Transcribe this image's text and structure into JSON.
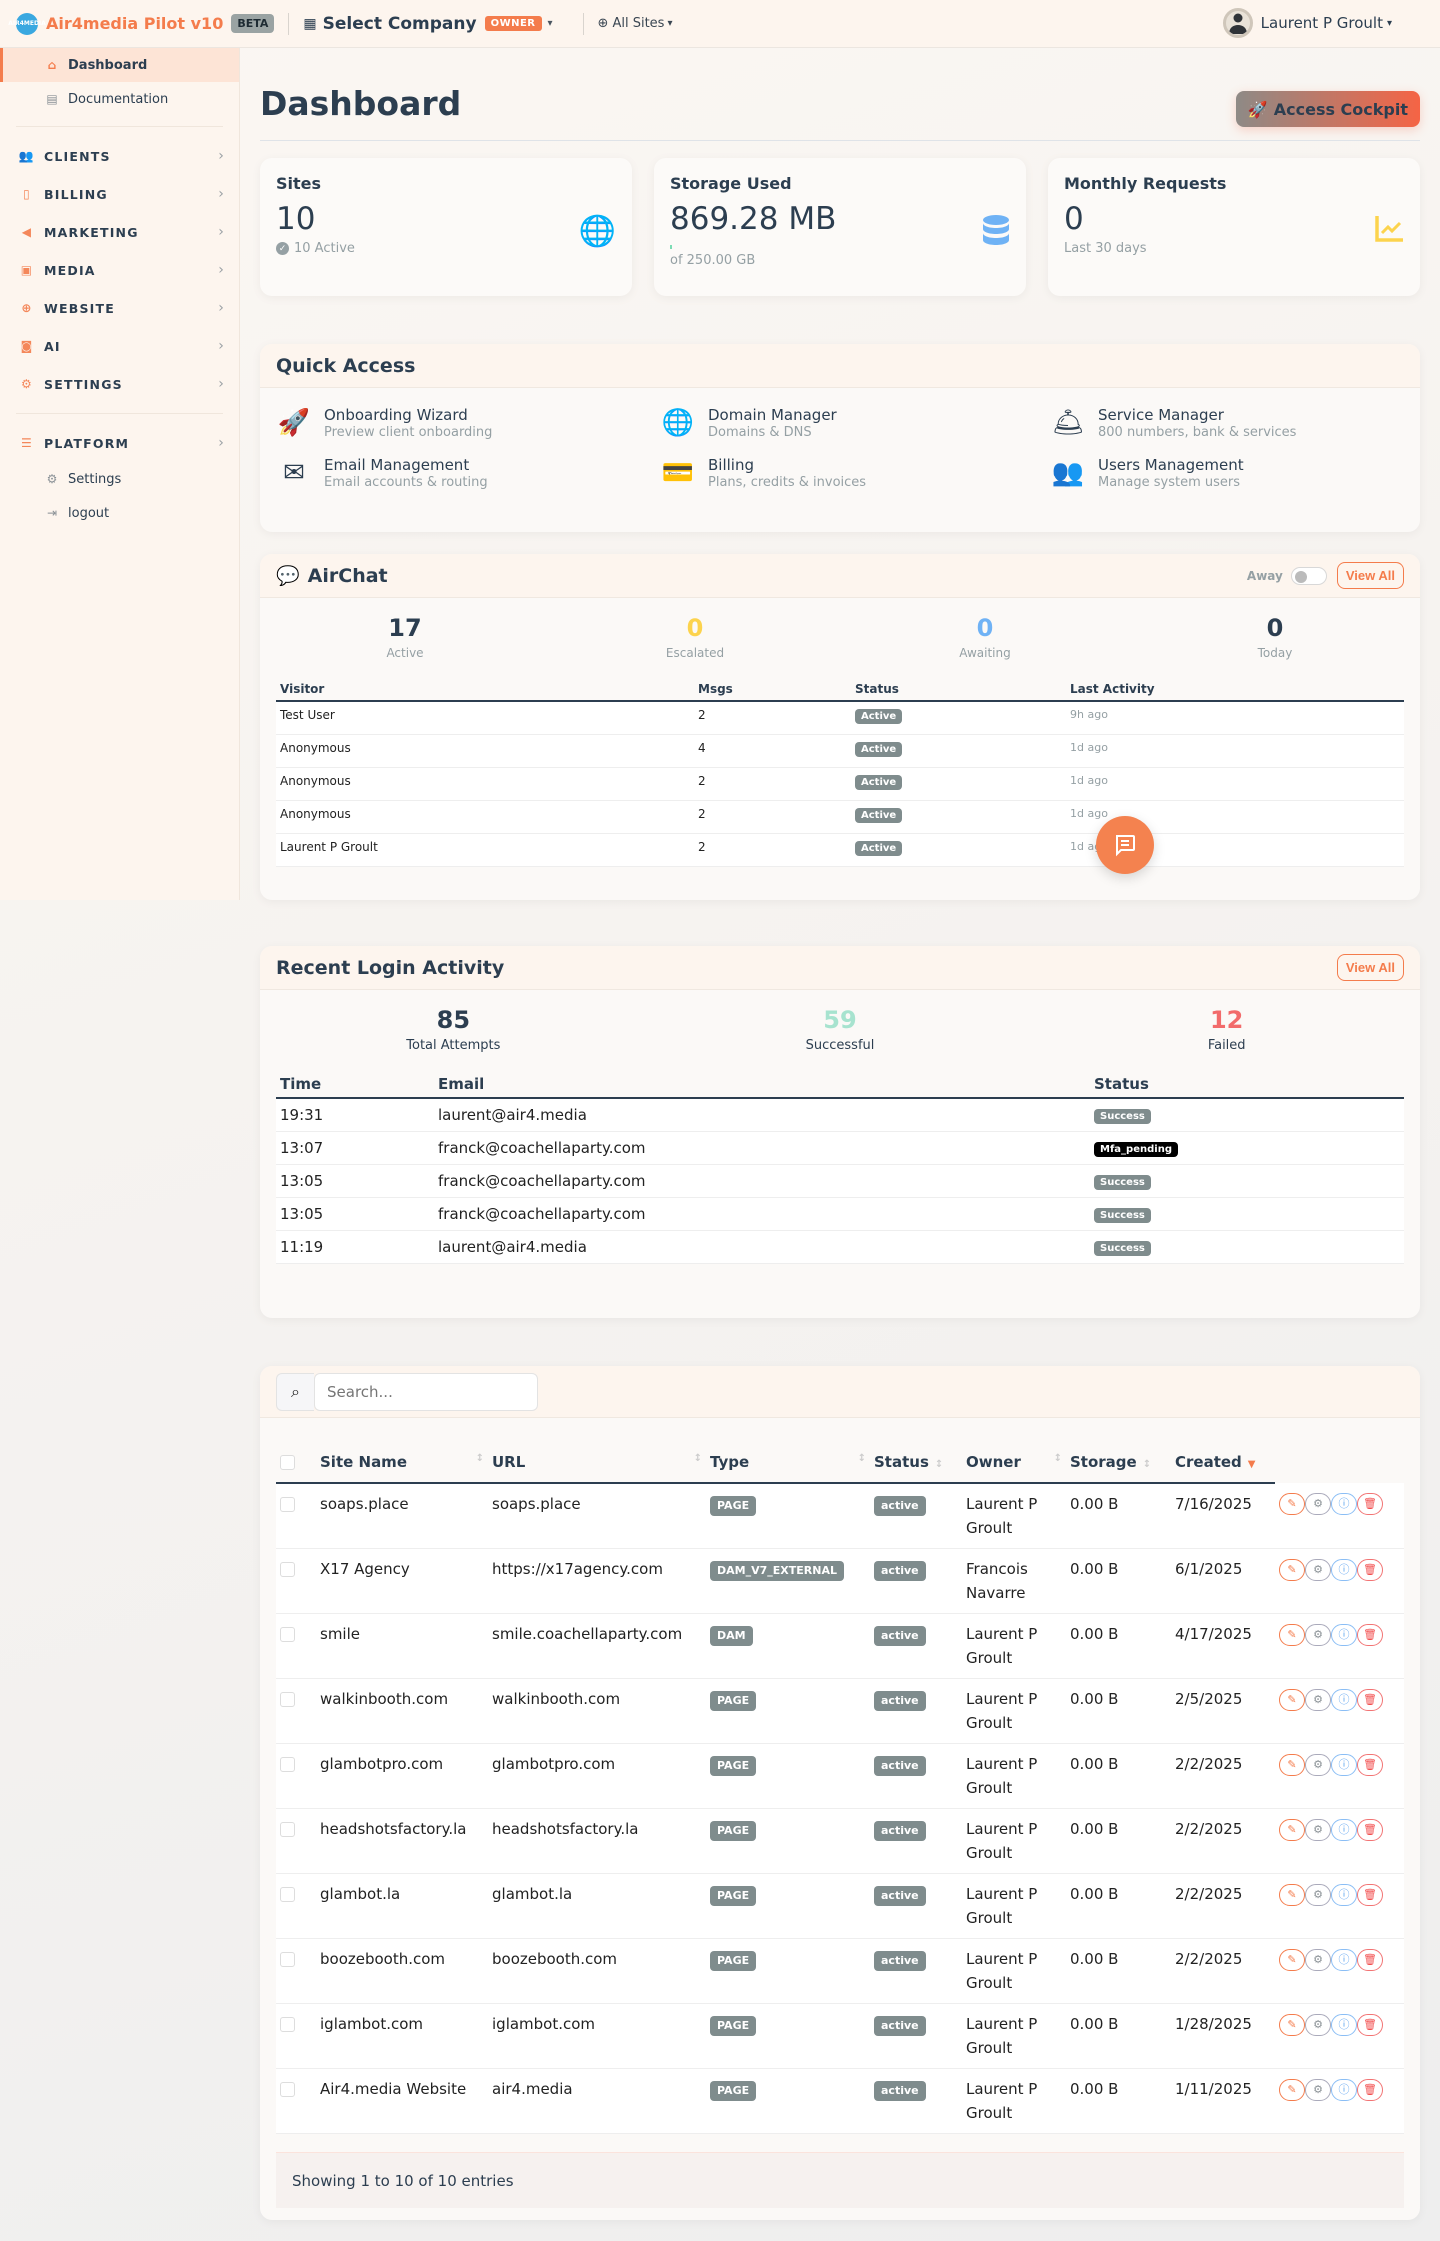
{
  "topbar": {
    "logo_text": "AIR4MEDIA",
    "brand": "Air4media Pilot v10",
    "beta_badge": "BETA",
    "company_selector": "Select Company",
    "owner_badge": "OWNER",
    "sites_selector": "All Sites",
    "user_name": "Laurent P Groult"
  },
  "sidebar": {
    "top_items": [
      {
        "label": "Dashboard",
        "icon": "home-icon",
        "active": true
      },
      {
        "label": "Documentation",
        "icon": "book-icon",
        "active": false
      }
    ],
    "sections": [
      {
        "label": "CLIENTS",
        "icon": "users-icon"
      },
      {
        "label": "BILLING",
        "icon": "invoice-icon"
      },
      {
        "label": "MARKETING",
        "icon": "megaphone-icon"
      },
      {
        "label": "MEDIA",
        "icon": "images-icon"
      },
      {
        "label": "WEBSITE",
        "icon": "globe-icon"
      },
      {
        "label": "AI",
        "icon": "robot-icon"
      },
      {
        "label": "SETTINGS",
        "icon": "gear-icon"
      }
    ],
    "platform": {
      "label": "PLATFORM",
      "icon": "server-icon"
    },
    "platform_items": [
      {
        "label": "Settings",
        "icon": "gear-icon"
      },
      {
        "label": "logout",
        "icon": "logout-icon"
      }
    ]
  },
  "page": {
    "title": "Dashboard",
    "cockpit_button": "Access Cockpit"
  },
  "stats": [
    {
      "title": "Sites",
      "value": "10",
      "sub": "10 Active",
      "icon": "globe-icon",
      "color": "#f47c4c"
    },
    {
      "title": "Storage Used",
      "value": "869.28 MB",
      "sub": "of 250.00 GB",
      "icon": "database-icon",
      "color": "#6fb2f5"
    },
    {
      "title": "Monthly Requests",
      "value": "0",
      "sub": "Last 30 days",
      "icon": "chart-line-icon",
      "color": "#fcd34d"
    }
  ],
  "quick_access": {
    "title": "Quick Access",
    "items": [
      {
        "title": "Onboarding Wizard",
        "desc": "Preview client onboarding",
        "icon": "rocket-icon"
      },
      {
        "title": "Domain Manager",
        "desc": "Domains & DNS",
        "icon": "globe-icon"
      },
      {
        "title": "Service Manager",
        "desc": "800 numbers, bank & services",
        "icon": "concierge-bell-icon"
      },
      {
        "title": "Email Management",
        "desc": "Email accounts & routing",
        "icon": "envelope-icon"
      },
      {
        "title": "Billing",
        "desc": "Plans, credits & invoices",
        "icon": "credit-card-icon"
      },
      {
        "title": "Users Management",
        "desc": "Manage system users",
        "icon": "users-cog-icon"
      }
    ]
  },
  "airchat": {
    "title": "AirChat",
    "away_label": "Away",
    "view_all": "View All",
    "counters": [
      {
        "value": "17",
        "label": "Active",
        "color": "#2c3e50"
      },
      {
        "value": "0",
        "label": "Escalated",
        "color": "#fcd34d"
      },
      {
        "value": "0",
        "label": "Awaiting",
        "color": "#6fb2f5"
      },
      {
        "value": "0",
        "label": "Today",
        "color": "#2c3e50"
      }
    ],
    "columns": [
      "Visitor",
      "Msgs",
      "Status",
      "Last Activity"
    ],
    "rows": [
      {
        "visitor": "Test User",
        "msgs": "2",
        "status": "Active",
        "last": "9h ago"
      },
      {
        "visitor": "Anonymous",
        "msgs": "4",
        "status": "Active",
        "last": "1d ago"
      },
      {
        "visitor": "Anonymous",
        "msgs": "2",
        "status": "Active",
        "last": "1d ago"
      },
      {
        "visitor": "Anonymous",
        "msgs": "2",
        "status": "Active",
        "last": "1d ago"
      },
      {
        "visitor": "Laurent P Groult",
        "msgs": "2",
        "status": "Active",
        "last": "1d ago"
      }
    ]
  },
  "login_activity": {
    "title": "Recent Login Activity",
    "view_all": "View All",
    "counters": [
      {
        "value": "85",
        "label": "Total Attempts",
        "color": "#2c3e50"
      },
      {
        "value": "59",
        "label": "Successful",
        "color": "#a7e3cf"
      },
      {
        "value": "12",
        "label": "Failed",
        "color": "#f26b6b"
      }
    ],
    "columns": [
      "Time",
      "Email",
      "Status"
    ],
    "rows": [
      {
        "time": "19:31",
        "email": "laurent@air4.media",
        "status": "Success"
      },
      {
        "time": "13:07",
        "email": "franck@coachellaparty.com",
        "status": "Mfa_pending"
      },
      {
        "time": "13:05",
        "email": "franck@coachellaparty.com",
        "status": "Success"
      },
      {
        "time": "13:05",
        "email": "franck@coachellaparty.com",
        "status": "Success"
      },
      {
        "time": "11:19",
        "email": "laurent@air4.media",
        "status": "Success"
      }
    ]
  },
  "sites_table": {
    "search_placeholder": "Search...",
    "columns": [
      "Site Name",
      "URL",
      "Type",
      "Status",
      "Owner",
      "Storage",
      "Created"
    ],
    "sorted_column": "Created",
    "rows": [
      {
        "name": "soaps.place",
        "url": "soaps.place",
        "type": "PAGE",
        "status": "active",
        "owner": "Laurent P Groult",
        "storage": "0.00 B",
        "created": "7/16/2025"
      },
      {
        "name": "X17 Agency",
        "url": "https://x17agency.com",
        "type": "DAM_V7_EXTERNAL",
        "status": "active",
        "owner": "Francois Navarre",
        "storage": "0.00 B",
        "created": "6/1/2025"
      },
      {
        "name": "smile",
        "url": "smile.coachellaparty.com",
        "type": "DAM",
        "status": "active",
        "owner": "Laurent P Groult",
        "storage": "0.00 B",
        "created": "4/17/2025"
      },
      {
        "name": "walkinbooth.com",
        "url": "walkinbooth.com",
        "type": "PAGE",
        "status": "active",
        "owner": "Laurent P Groult",
        "storage": "0.00 B",
        "created": "2/5/2025"
      },
      {
        "name": "glambotpro.com",
        "url": "glambotpro.com",
        "type": "PAGE",
        "status": "active",
        "owner": "Laurent P Groult",
        "storage": "0.00 B",
        "created": "2/2/2025"
      },
      {
        "name": "headshotsfactory.la",
        "url": "headshotsfactory.la",
        "type": "PAGE",
        "status": "active",
        "owner": "Laurent P Groult",
        "storage": "0.00 B",
        "created": "2/2/2025"
      },
      {
        "name": "glambot.la",
        "url": "glambot.la",
        "type": "PAGE",
        "status": "active",
        "owner": "Laurent P Groult",
        "storage": "0.00 B",
        "created": "2/2/2025"
      },
      {
        "name": "boozebooth.com",
        "url": "boozebooth.com",
        "type": "PAGE",
        "status": "active",
        "owner": "Laurent P Groult",
        "storage": "0.00 B",
        "created": "2/2/2025"
      },
      {
        "name": "iglambot.com",
        "url": "iglambot.com",
        "type": "PAGE",
        "status": "active",
        "owner": "Laurent P Groult",
        "storage": "0.00 B",
        "created": "1/28/2025"
      },
      {
        "name": "Air4.media Website",
        "url": "air4.media",
        "type": "PAGE",
        "status": "active",
        "owner": "Laurent P Groult",
        "storage": "0.00 B",
        "created": "1/11/2025"
      }
    ],
    "footer": "Showing 1 to 10 of 10 entries"
  },
  "colors": {
    "accent": "#f47c4c",
    "text": "#2c3e50",
    "muted": "#95a0a4",
    "badge": "#7f8c8d"
  }
}
